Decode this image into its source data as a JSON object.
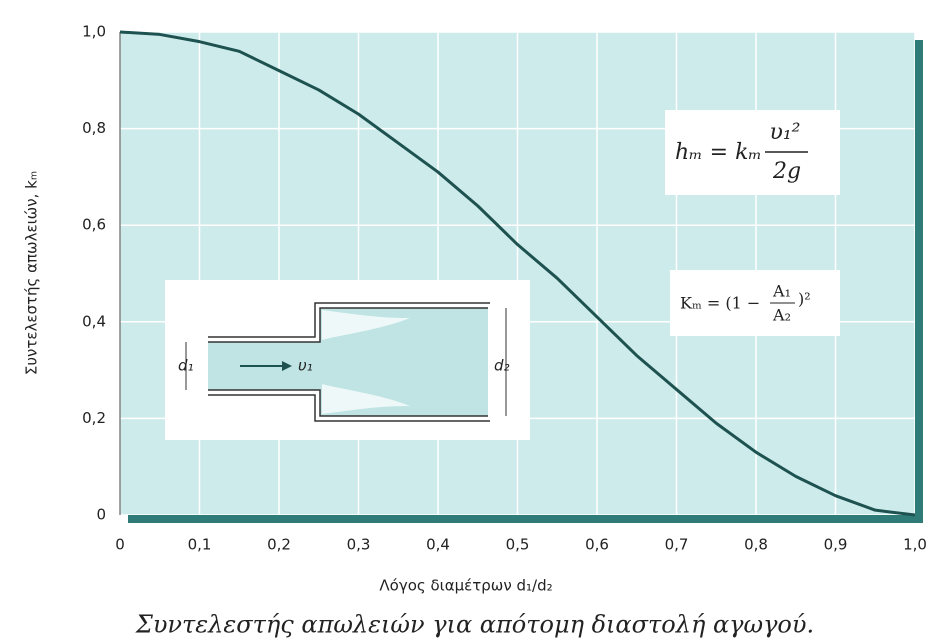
{
  "chart_data": {
    "type": "line",
    "xlabel": "Λόγος διαμέτρων d₁/d₂",
    "ylabel": "Συντελεστής απωλειών, kₘ",
    "caption": "Συντελεστής απωλειών για απότομη διαστολή αγωγού.",
    "x": [
      0,
      0.05,
      0.1,
      0.15,
      0.2,
      0.25,
      0.3,
      0.35,
      0.4,
      0.45,
      0.5,
      0.55,
      0.6,
      0.65,
      0.7,
      0.75,
      0.8,
      0.85,
      0.9,
      0.95,
      1.0
    ],
    "series": [
      {
        "color": "#1d5250",
        "values": [
          1,
          0.995,
          0.98,
          0.96,
          0.92,
          0.88,
          0.83,
          0.77,
          0.71,
          0.64,
          0.56,
          0.49,
          0.41,
          0.33,
          0.26,
          0.19,
          0.13,
          0.08,
          0.04,
          0.01,
          0
        ]
      }
    ],
    "xlim": [
      0,
      1
    ],
    "ylim": [
      0,
      1
    ],
    "xticks": [
      0,
      {
        "value": 0.1,
        "label": "0,1"
      },
      {
        "value": 0.2,
        "label": "0,2"
      },
      {
        "value": 0.3,
        "label": "0,3"
      },
      {
        "value": 0.4,
        "label": "0,4"
      },
      {
        "value": 0.5,
        "label": "0,5"
      },
      {
        "value": 0.6,
        "label": "0,6"
      },
      {
        "value": 0.7,
        "label": "0,7"
      },
      {
        "value": 0.8,
        "label": "0,8"
      },
      {
        "value": 0.9,
        "label": "0,9"
      },
      {
        "value": 1,
        "label": "1,0"
      }
    ],
    "yticks": [
      0,
      {
        "value": 0.2,
        "label": "0,2"
      },
      {
        "value": 0.4,
        "label": "0,4"
      },
      {
        "value": 0.6,
        "label": "0,6"
      },
      {
        "value": 0.8,
        "label": "0,8"
      },
      {
        "value": 1,
        "label": "1,0"
      }
    ],
    "grid": true,
    "annotations": {
      "formula1_lhs": "hₘ = kₘ",
      "formula1_num": "υ₁²",
      "formula1_den": "2g",
      "formula2_lhs": "Kₘ = (1 −",
      "formula2_num": "A₁",
      "formula2_den": "A₂",
      "formula2_rhs": ")²",
      "inset_d1": "d₁",
      "inset_u1": "υ₁",
      "inset_d2": "d₂"
    }
  }
}
